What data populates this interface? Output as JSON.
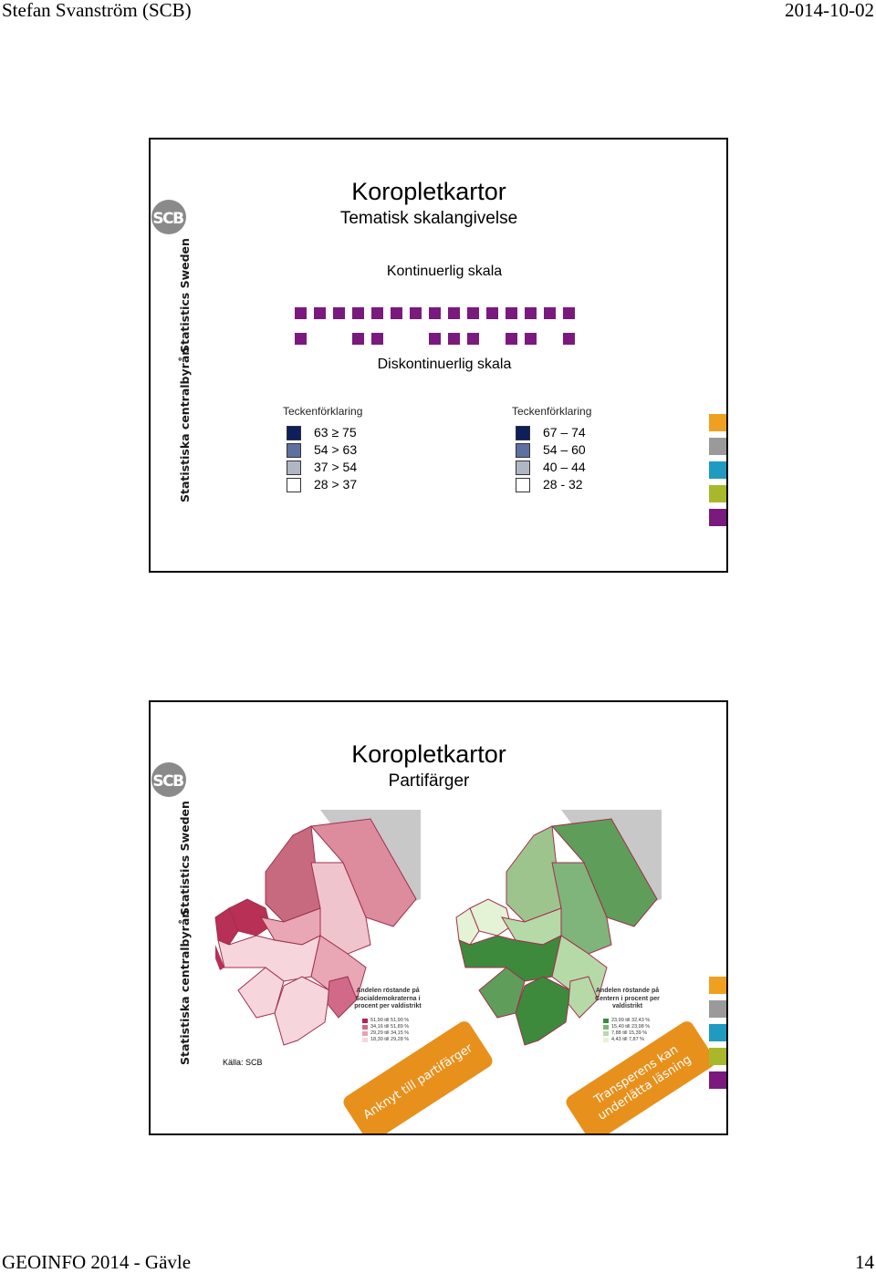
{
  "header": {
    "author": "Stefan Svanström (SCB)",
    "date": "2014-10-02"
  },
  "footer": {
    "event": "GEOINFO 2014 - Gävle",
    "page": "14"
  },
  "brand": {
    "logo_text": "SCB",
    "vertical_text_1": "Statistics Sweden",
    "vertical_text_2": "Statistiska centralbyrån",
    "side_colors": [
      "#f0a020",
      "#9a9a9a",
      "#1f9ac0",
      "#a8b82a",
      "#7a1a7e"
    ]
  },
  "slide1": {
    "title": "Koropletkartor",
    "subtitle": "Tematisk skalangivelse",
    "continuous_label": "Kontinuerlig skala",
    "discontinuous_label": "Diskontinuerlig skala",
    "legend_left": {
      "title": "Teckenförklaring",
      "items": [
        {
          "label": "63 ≥ 75",
          "color": "#0e1f5e"
        },
        {
          "label": "54 > 63",
          "color": "#5d70a0"
        },
        {
          "label": "37 > 54",
          "color": "#b0b6c4"
        },
        {
          "label": "28 > 37",
          "color": "#ffffff"
        }
      ]
    },
    "legend_right": {
      "title": "Teckenförklaring",
      "items": [
        {
          "label": "67 – 74",
          "color": "#0e1f5e"
        },
        {
          "label": "54 – 60",
          "color": "#5d70a0"
        },
        {
          "label": "40 – 44",
          "color": "#b0b6c4"
        },
        {
          "label": "28 - 32",
          "color": "#ffffff"
        }
      ]
    }
  },
  "slide2": {
    "title": "Koropletkartor",
    "subtitle": "Partifärger",
    "source": "Källa: SCB",
    "map_left": {
      "legend_title": "Andelen röstande på Socialdemokraterna i procent per valdistrikt",
      "items": [
        {
          "label": "51,90 till 51,90 %",
          "color": "#b0254e"
        },
        {
          "label": "34,16 till 51,89 %",
          "color": "#d06a88"
        },
        {
          "label": "29,29 till 34,15 %",
          "color": "#e7a3b3"
        },
        {
          "label": "18,30 till 29,28 %",
          "color": "#f6d6dc"
        }
      ]
    },
    "map_right": {
      "legend_title": "Andelen röstande på Centern i procent per valdistrikt",
      "items": [
        {
          "label": "23,99 till 32,43 %",
          "color": "#3d8a3d"
        },
        {
          "label": "15,40 till 23,98 %",
          "color": "#7fb47a"
        },
        {
          "label": "7,88 till 15,39 %",
          "color": "#b6d9a8"
        },
        {
          "label": "4,43 till 7,87 %",
          "color": "#e4f2d6"
        }
      ]
    },
    "ribbon_left": "Anknyt till partifärger",
    "ribbon_right": "Transperens kan underlätta läsning"
  }
}
